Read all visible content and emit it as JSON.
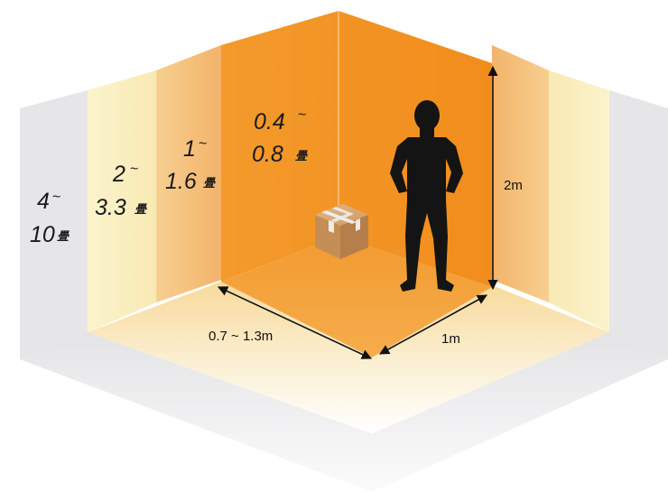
{
  "size_tiers": [
    {
      "id": "xl",
      "from": "4",
      "to": "10",
      "unit": "畳"
    },
    {
      "id": "lg",
      "from": "2",
      "to": "3.3",
      "unit": "畳"
    },
    {
      "id": "md",
      "from": "1",
      "to": "1.6",
      "unit": "畳"
    },
    {
      "id": "sm",
      "from": "0.4",
      "to": "0.8",
      "unit": "畳"
    }
  ],
  "tilde": "~",
  "dimensions": {
    "height": "2m",
    "depth": "1m",
    "width": "0.7 ~ 1.3m"
  },
  "colors": {
    "tier_xl": "#e6e6e8",
    "tier_lg": "#f9efc0",
    "tier_md": "#f5c080",
    "tier_sm": "#f3921f",
    "floor_sm": "#f5a53a",
    "box": "#c9955e",
    "tape": "#e9e9e9",
    "silhouette": "#141414"
  }
}
